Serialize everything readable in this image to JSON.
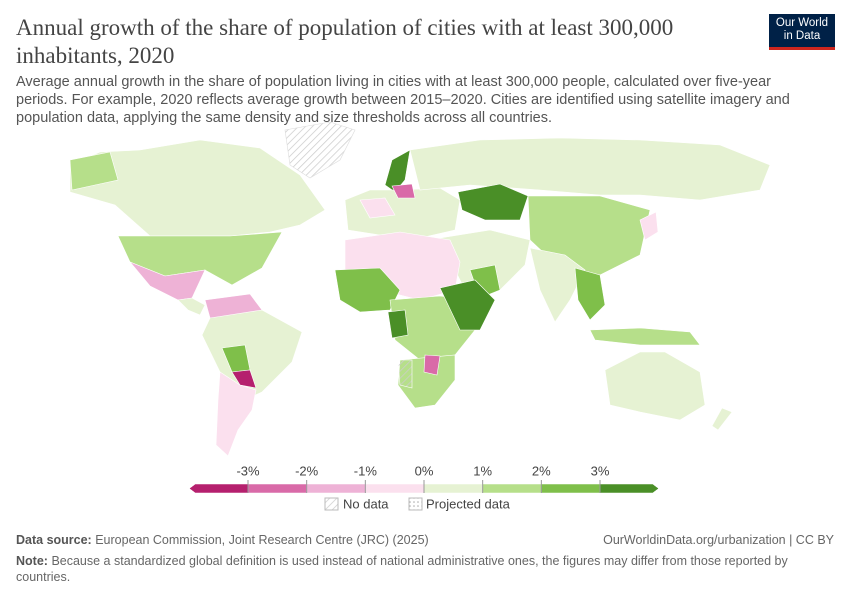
{
  "header": {
    "title": "Annual growth of the share of population of cities with at least 300,000 inhabitants, 2020",
    "subtitle": "Average annual growth in the share of population living in cities with at least 300,000 people, calculated over five-year periods. For example, 2020 reflects average growth between 2015–2020. Cities are identified using satellite imagery and population data, applying the same density and size thresholds across all countries.",
    "logo": [
      "Our World",
      "in Data"
    ]
  },
  "legend": {
    "ticks": [
      {
        "value": -3,
        "label": "-3%"
      },
      {
        "value": -2,
        "label": "-2%"
      },
      {
        "value": -1,
        "label": "-1%"
      },
      {
        "value": 0,
        "label": "0%"
      },
      {
        "value": 1,
        "label": "1%"
      },
      {
        "value": 2,
        "label": "2%"
      },
      {
        "value": 3,
        "label": "3%"
      }
    ],
    "colors": [
      "#b5206e",
      "#d96aa8",
      "#eeb2d6",
      "#fbe0ee",
      "#e6f2d3",
      "#b6df8a",
      "#7fbf4a",
      "#4a8f27"
    ],
    "no_data": "No data",
    "projected": "Projected data"
  },
  "footer": {
    "source_label": "Data source:",
    "source": "European Commission, Joint Research Centre (JRC) (2025)",
    "url": "OurWorldinData.org/urbanization | CC BY",
    "note_label": "Note:",
    "note": "Because a standardized global definition is used instead of national administrative ones, the figures may differ from those reported by countries."
  }
}
